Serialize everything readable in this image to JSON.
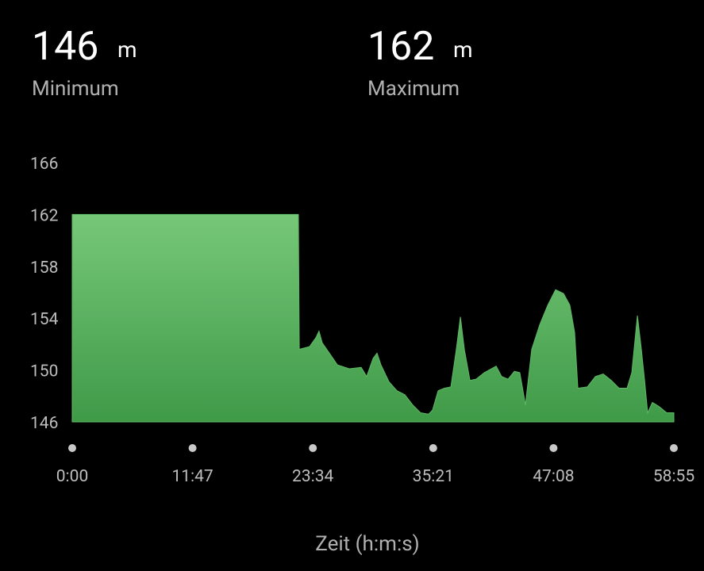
{
  "stats": [
    {
      "value": 146,
      "unit": "m",
      "label": "Minimum"
    },
    {
      "value": 162,
      "unit": "m",
      "label": "Maximum"
    }
  ],
  "chart_data": {
    "type": "area",
    "x_label": "Zeit (h:m:s)",
    "color": "#5fb865",
    "x": [
      0,
      1329,
      1334,
      1394,
      1432,
      1450,
      1469,
      1511,
      1558,
      1628,
      1698,
      1730,
      1768,
      1791,
      1814,
      1861,
      1908,
      1954,
      2001,
      2047,
      2094,
      2117,
      2150,
      2187,
      2225,
      2257,
      2281,
      2304,
      2337,
      2374,
      2421,
      2491,
      2523,
      2561,
      2598,
      2630,
      2663,
      2700,
      2747,
      2794,
      2840,
      2887,
      2924,
      2952,
      2971,
      3027,
      3074,
      3120,
      3167,
      3213,
      3260,
      3288,
      3321,
      3344,
      3363,
      3381,
      3409,
      3447,
      3493,
      3535
    ],
    "values": [
      162.0,
      162.0,
      151.6,
      151.8,
      152.5,
      153.0,
      152.1,
      151.3,
      150.4,
      150.1,
      150.2,
      149.5,
      150.9,
      151.3,
      150.4,
      149.1,
      148.4,
      148.1,
      147.3,
      146.7,
      146.6,
      146.9,
      148.4,
      148.6,
      148.7,
      151.6,
      154.1,
      151.6,
      149.2,
      149.3,
      149.8,
      150.3,
      149.5,
      149.3,
      149.9,
      149.8,
      147.3,
      151.6,
      153.5,
      155.0,
      156.2,
      155.9,
      155.0,
      152.9,
      148.6,
      148.7,
      149.5,
      149.7,
      149.2,
      148.6,
      148.6,
      149.8,
      154.2,
      151.6,
      149.2,
      146.7,
      147.5,
      147.2,
      146.7,
      146.7
    ],
    "xlim": [
      0,
      3535
    ],
    "xticks": [
      {
        "value": 0,
        "label": "0:00"
      },
      {
        "value": 707,
        "label": "11:47"
      },
      {
        "value": 1414,
        "label": "23:34"
      },
      {
        "value": 2121,
        "label": "35:21"
      },
      {
        "value": 2828,
        "label": "47:08"
      },
      {
        "value": 3535,
        "label": "58:55"
      }
    ],
    "ylim": [
      146,
      166
    ],
    "yticks": [
      146,
      150,
      154,
      158,
      162,
      166
    ]
  }
}
